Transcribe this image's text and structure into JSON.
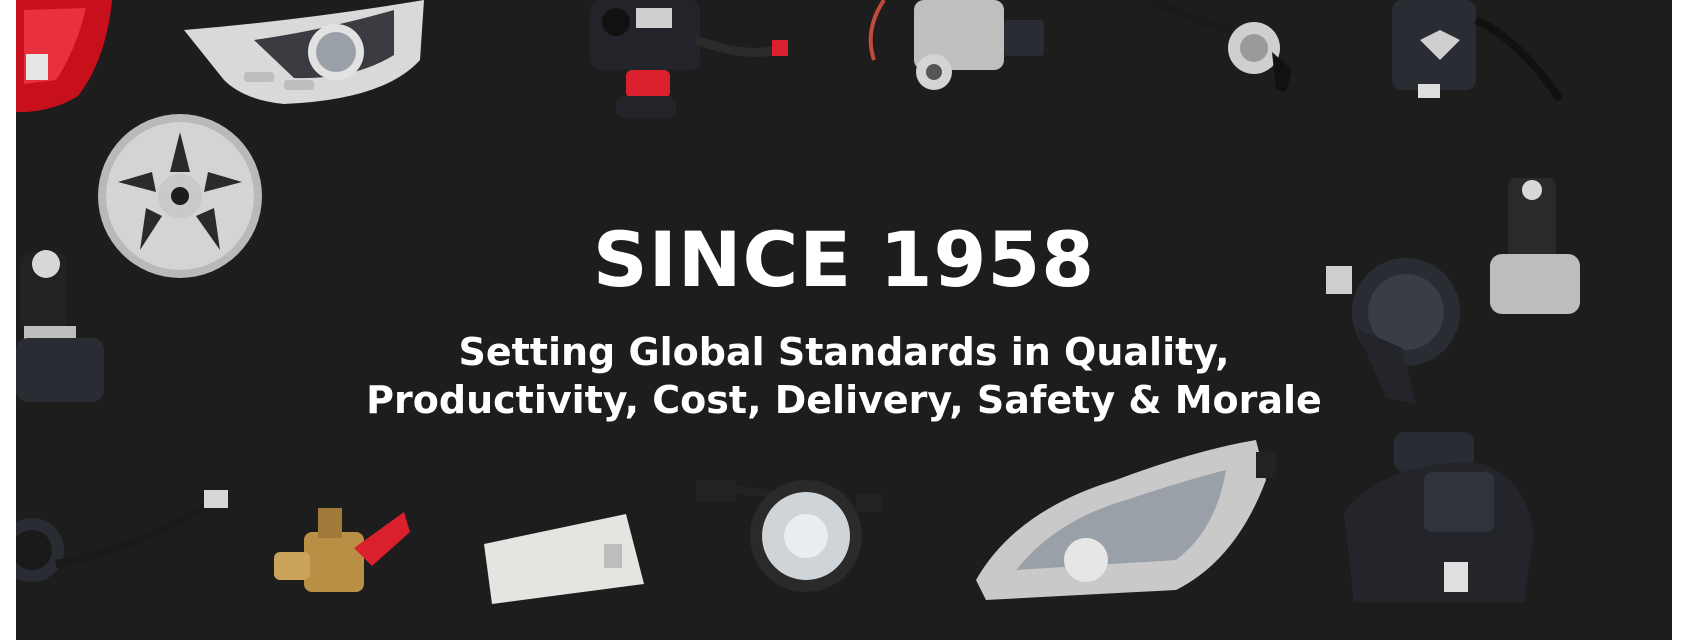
{
  "hero": {
    "headline": "SINCE 1958",
    "tagline_line1": "Setting Global Standards in Quality,",
    "tagline_line2": "Productivity, Cost, Delivery, Safety & Morale"
  },
  "colors": {
    "background": "#1d1d1d",
    "text": "#ffffff",
    "accent_red": "#d9202c",
    "metal": "#c9c9c9",
    "dark_part": "#2a2c33"
  },
  "parts": [
    "tail-lamp",
    "ac-control-panel",
    "handlebar-switch",
    "ignition-lock",
    "key-switch",
    "horn-button-switch",
    "alloy-wheel",
    "headlamp-rotary-switch",
    "horn",
    "rotary-knob-switch",
    "wiring-harness",
    "fuel-tap-valve",
    "interior-dome-lamp",
    "fog-lamp",
    "headlamp-assembly",
    "canister"
  ]
}
